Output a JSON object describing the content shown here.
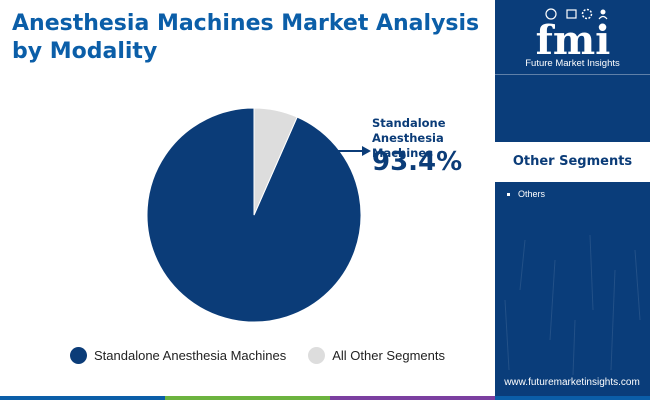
{
  "title": "Anesthesia Machines Market Analysis by Modality",
  "chart_data": {
    "type": "pie",
    "title": "Anesthesia Machines Market Analysis by Modality",
    "slices": [
      {
        "name": "Standalone Anesthesia Machines",
        "value": 93.4,
        "color": "#0b3c78"
      },
      {
        "name": "All Other Segments",
        "value": 6.6,
        "color": "#dddddd"
      }
    ],
    "callout": {
      "label": "Standalone Anesthesia Machines",
      "value_text": "93.4%"
    },
    "legend_position": "bottom"
  },
  "sidebar": {
    "logo_text": "fmi",
    "logo_caption": "Future Market Insights",
    "other_heading": "Other Segments",
    "other_items": [
      "Others"
    ],
    "website": "www.futuremarketinsights.com"
  },
  "colors": {
    "title": "#0b5ea8",
    "primary": "#0b3c78",
    "sidebar_bg": "#0a3d7a",
    "footer_segments": [
      "#0b5ea8",
      "#6cb33f",
      "#7b3fa0"
    ]
  },
  "icons": [
    "globe-icon",
    "chart-icon",
    "gear-icon",
    "person-icon",
    "arrow-right-icon"
  ]
}
